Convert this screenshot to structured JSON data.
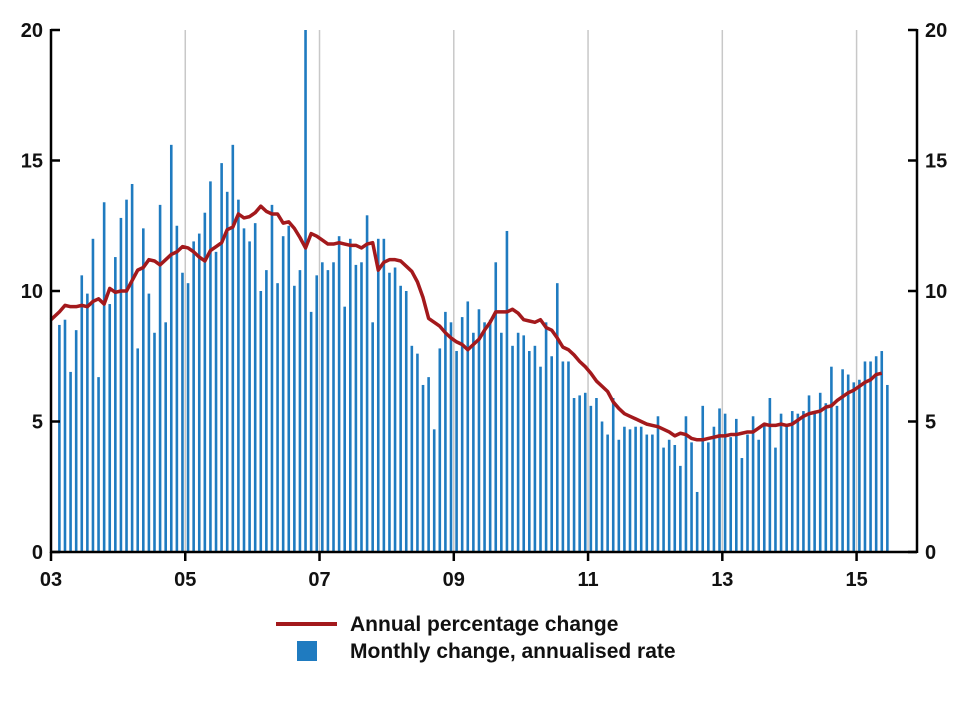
{
  "chart_data": {
    "type": "bar",
    "title": "",
    "xlabel": "",
    "ylabel": "",
    "x_range": [
      2003.0,
      2015.9
    ],
    "ylim": [
      0,
      20
    ],
    "y_ticks": [
      0,
      5,
      10,
      15,
      20
    ],
    "x_ticks": [
      {
        "value": 2003,
        "label": "03"
      },
      {
        "value": 2005,
        "label": "05"
      },
      {
        "value": 2007,
        "label": "07"
      },
      {
        "value": 2009,
        "label": "09"
      },
      {
        "value": 2011,
        "label": "11"
      },
      {
        "value": 2013,
        "label": "13"
      },
      {
        "value": 2015,
        "label": "15"
      }
    ],
    "grid": "vertical at x ticks",
    "start_year": 2003,
    "start_month": 2,
    "bar_color": "#1f7bc0",
    "line_color": "#a3191c",
    "series": [
      {
        "name": "Monthly change, annualised rate",
        "kind": "bar",
        "values": [
          8.7,
          8.9,
          6.9,
          8.5,
          10.6,
          9.9,
          12.0,
          6.7,
          13.4,
          9.5,
          11.3,
          12.8,
          13.5,
          14.1,
          7.8,
          12.4,
          9.9,
          8.4,
          13.3,
          8.8,
          15.6,
          12.5,
          10.7,
          10.3,
          11.9,
          12.2,
          13.0,
          14.2,
          11.5,
          14.9,
          13.8,
          15.6,
          13.5,
          12.4,
          11.9,
          12.6,
          10.0,
          10.8,
          13.3,
          10.3,
          12.1,
          12.5,
          10.2,
          10.8,
          20.0,
          9.2,
          10.6,
          11.1,
          10.8,
          11.1,
          12.1,
          9.4,
          12.0,
          11.0,
          11.1,
          12.9,
          8.8,
          12.0,
          12.0,
          10.7,
          10.9,
          10.2,
          10.0,
          7.9,
          7.6,
          6.4,
          6.7,
          4.7,
          7.8,
          9.2,
          8.8,
          7.7,
          9.0,
          9.6,
          8.4,
          9.3,
          8.8,
          8.9,
          11.1,
          8.4,
          12.3,
          7.9,
          8.4,
          8.3,
          7.7,
          7.9,
          7.1,
          8.8,
          7.5,
          10.3,
          7.3,
          7.3,
          5.9,
          6.0,
          6.1,
          5.6,
          5.9,
          5.0,
          4.5,
          5.9,
          4.3,
          4.8,
          4.7,
          4.8,
          4.8,
          4.5,
          4.5,
          5.2,
          4.0,
          4.3,
          4.1,
          3.3,
          5.2,
          4.2,
          2.3,
          5.6,
          4.2,
          4.8,
          5.5,
          5.3,
          4.4,
          5.1,
          3.6,
          4.5,
          5.2,
          4.3,
          4.9,
          5.9,
          4.0,
          5.3,
          4.8,
          5.4,
          5.3,
          5.4,
          6.0,
          5.4,
          6.1,
          5.7,
          7.1,
          5.6,
          7.0,
          6.8,
          6.5,
          6.6,
          7.3,
          7.3,
          7.5,
          7.7,
          6.4
        ]
      },
      {
        "name": "Annual percentage change",
        "kind": "line",
        "values": [
          8.9,
          9.2,
          9.45,
          9.4,
          9.4,
          9.45,
          9.4,
          9.6,
          9.7,
          9.5,
          10.1,
          9.95,
          10.0,
          10.0,
          10.4,
          10.8,
          10.9,
          11.2,
          11.15,
          11.0,
          11.2,
          11.4,
          11.5,
          11.7,
          11.65,
          11.5,
          11.3,
          11.15,
          11.55,
          11.7,
          11.85,
          12.35,
          12.45,
          12.95,
          12.8,
          12.85,
          13.0,
          13.25,
          13.05,
          12.95,
          12.95,
          12.6,
          12.65,
          12.4,
          12.05,
          11.65,
          12.2,
          12.1,
          11.95,
          11.8,
          11.8,
          11.85,
          11.8,
          11.75,
          11.75,
          11.65,
          11.8,
          11.85,
          10.8,
          11.1,
          11.2,
          11.2,
          11.15,
          10.95,
          10.75,
          10.35,
          9.75,
          8.95,
          8.8,
          8.65,
          8.4,
          8.2,
          8.05,
          7.95,
          7.75,
          7.95,
          8.15,
          8.5,
          8.8,
          9.2,
          9.2,
          9.2,
          9.3,
          9.15,
          8.9,
          8.85,
          8.8,
          8.9,
          8.6,
          8.5,
          8.2,
          7.85,
          7.75,
          7.55,
          7.3,
          7.1,
          6.85,
          6.55,
          6.35,
          6.15,
          5.75,
          5.5,
          5.3,
          5.2,
          5.1,
          5.0,
          4.9,
          4.85,
          4.8,
          4.7,
          4.6,
          4.45,
          4.55,
          4.5,
          4.35,
          4.3,
          4.3,
          4.35,
          4.4,
          4.45,
          4.45,
          4.5,
          4.5,
          4.55,
          4.6,
          4.6,
          4.75,
          4.9,
          4.85,
          4.85,
          4.9,
          4.85,
          4.9,
          5.05,
          5.2,
          5.3,
          5.35,
          5.4,
          5.55,
          5.6,
          5.8,
          5.95,
          6.1,
          6.2,
          6.35,
          6.5,
          6.6,
          6.8,
          6.85
        ]
      }
    ]
  },
  "legend": {
    "line_label": "Annual percentage change",
    "bar_label": "Monthly change, annualised rate"
  }
}
